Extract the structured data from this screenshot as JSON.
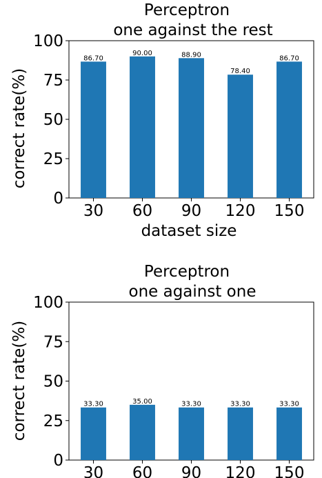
{
  "chart_data": [
    {
      "type": "bar",
      "title_lines": [
        "Perceptron",
        "one against the rest"
      ],
      "xlabel": "dataset size",
      "ylabel": "correct rate(%)",
      "categories": [
        "30",
        "60",
        "90",
        "120",
        "150"
      ],
      "values": [
        86.7,
        90.0,
        88.9,
        78.4,
        86.7
      ],
      "value_labels": [
        "86.70",
        "90.00",
        "88.90",
        "78.40",
        "86.70"
      ],
      "ylim": [
        0,
        100
      ],
      "yticks": [
        "0",
        "25",
        "50",
        "75",
        "100"
      ],
      "grid": false,
      "bar_color": "#1f77b4"
    },
    {
      "type": "bar",
      "title_lines": [
        "Perceptron",
        "one against one"
      ],
      "xlabel": "",
      "ylabel": "correct rate(%)",
      "categories": [
        "30",
        "60",
        "90",
        "120",
        "150"
      ],
      "values": [
        33.3,
        35.0,
        33.3,
        33.3,
        33.3
      ],
      "value_labels": [
        "33.30",
        "35.00",
        "33.30",
        "33.30",
        "33.30"
      ],
      "ylim": [
        0,
        100
      ],
      "yticks": [
        "0",
        "25",
        "50",
        "75",
        "100"
      ],
      "grid": false,
      "bar_color": "#1f77b4"
    }
  ]
}
